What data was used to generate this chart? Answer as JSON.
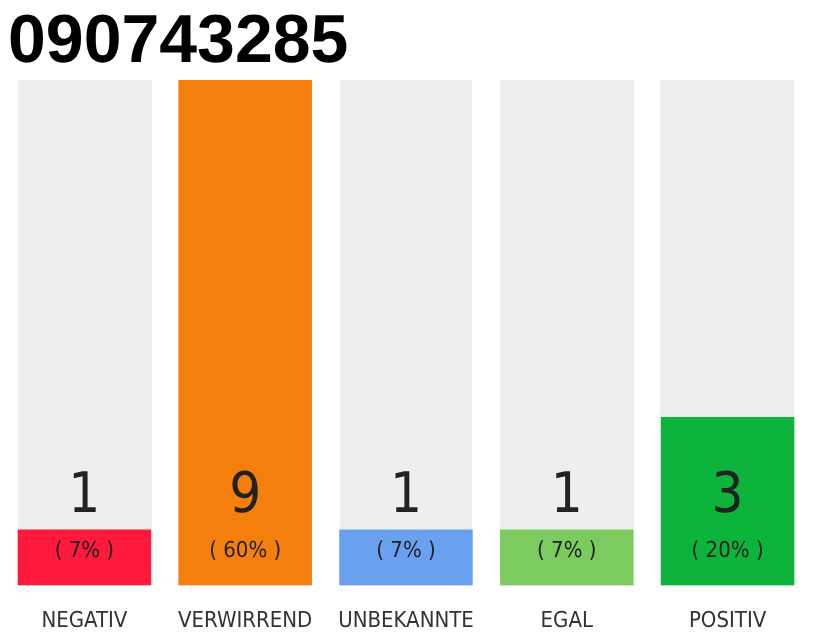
{
  "chart_data": {
    "type": "bar",
    "title": "090743285",
    "categories": [
      "NEGATIV",
      "VERWIRREND",
      "UNBEKANNTE",
      "EGAL",
      "POSITIV"
    ],
    "values": [
      1,
      9,
      1,
      1,
      3
    ],
    "colors": [
      "#ff1a3c",
      "#f57f0c",
      "#6aa0f0",
      "#7ccb5e",
      "#0db43c"
    ],
    "data_labels": true,
    "annotations": [
      "( 7% )",
      "( 60% )",
      "( 7% )",
      "( 7% )",
      "( 20% )"
    ]
  }
}
